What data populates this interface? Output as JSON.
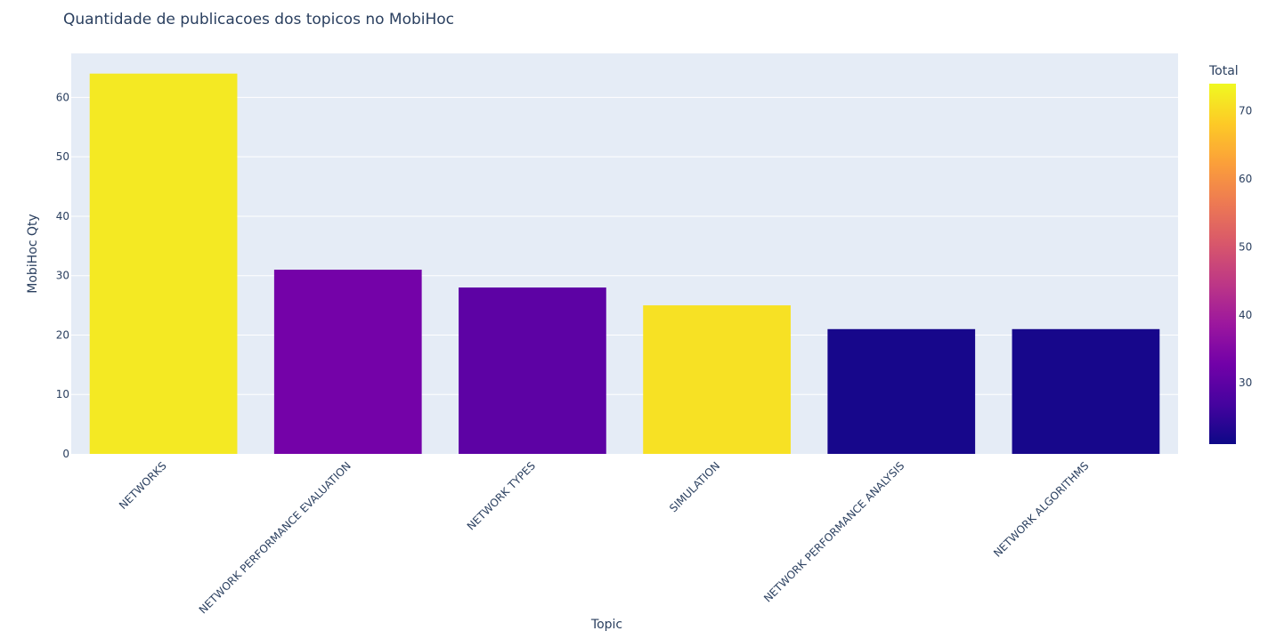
{
  "chart_data": {
    "type": "bar",
    "title": "Quantidade de publicacoes dos topicos no MobiHoc",
    "xlabel": "Topic",
    "ylabel": "MobiHoc  Qty",
    "categories": [
      "NETWORKS",
      "NETWORK PERFORMANCE EVALUATION",
      "NETWORK TYPES",
      "SIMULATION",
      "NETWORK PERFORMANCE ANALYSIS",
      "NETWORK ALGORITHMS"
    ],
    "values": [
      64,
      31,
      28,
      25,
      21,
      21
    ],
    "color_values": [
      72,
      33,
      30,
      71,
      22,
      22
    ],
    "ylim": [
      0,
      67.4
    ],
    "yticks": [
      0,
      10,
      20,
      30,
      40,
      50,
      60
    ],
    "grid": true,
    "colorbar": {
      "title": "Total",
      "range": [
        21,
        74
      ],
      "ticks": [
        30,
        40,
        50,
        60,
        70
      ],
      "colorscale": [
        "#0d0887",
        "#46039f",
        "#7201a8",
        "#9c179e",
        "#bd3786",
        "#d8576b",
        "#ed7953",
        "#fb9f3a",
        "#fdca26",
        "#f0f921"
      ]
    },
    "plot_background": "#e5ecf6",
    "gridline_color": "#ffffff",
    "text_color": "#2a3f5f"
  }
}
